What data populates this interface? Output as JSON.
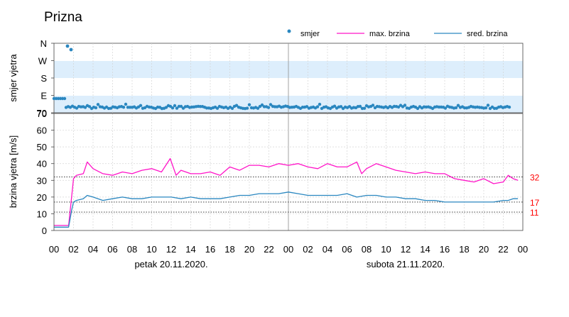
{
  "chart_data": {
    "type": "line",
    "title": "Prizna",
    "legend": {
      "placement": "top-right",
      "entries": [
        {
          "label": "smjer",
          "color": "#2a87c0",
          "marker": "dot"
        },
        {
          "label": "max. brzina",
          "color": "#ff14c8",
          "marker": "line"
        },
        {
          "label": "sred. brzina",
          "color": "#2a87c0",
          "marker": "line"
        }
      ]
    },
    "x": {
      "tick_labels": [
        "00",
        "02",
        "04",
        "06",
        "08",
        "10",
        "12",
        "14",
        "16",
        "18",
        "20",
        "22",
        "00",
        "02",
        "04",
        "06",
        "08",
        "10",
        "12",
        "14",
        "16",
        "18",
        "20",
        "22",
        "00"
      ],
      "day_labels": [
        "petak  20.11.2020.",
        "subota  21.11.2020."
      ],
      "range_hours": [
        0,
        48
      ]
    },
    "direction_panel": {
      "ylabel": "smjer vjetra",
      "tick_labels": [
        "N",
        "W",
        "S",
        "E",
        "70"
      ],
      "shaded_bands": [
        "W–S",
        "E–70"
      ],
      "series_name": "smjer",
      "color": "#2a87c0"
    },
    "speed_panel": {
      "ylabel": "brzina vjetra [m/s]",
      "ylim": [
        0,
        70
      ],
      "yticks": [
        0,
        10,
        20,
        30,
        40,
        50,
        60,
        70
      ],
      "reference_lines": [
        {
          "value": 32,
          "label": "32",
          "color": "#ff0000"
        },
        {
          "value": 17,
          "label": "17",
          "color": "#ff0000"
        },
        {
          "value": 11,
          "label": "11",
          "color": "#ff0000"
        }
      ],
      "series": [
        {
          "name": "max. brzina",
          "color": "#ff14c8",
          "hours": [
            0,
            1,
            1.5,
            1.8,
            2,
            2.3,
            3,
            3.4,
            4,
            5,
            6,
            7,
            8,
            9,
            10,
            11,
            11.9,
            12.5,
            13,
            14,
            15,
            16,
            17,
            18,
            19,
            20,
            21,
            22,
            23,
            24,
            25,
            26,
            27,
            28,
            29,
            30,
            31,
            31.5,
            32,
            33,
            34,
            35,
            36,
            37,
            38,
            39,
            40,
            41,
            42,
            43,
            44,
            45,
            46,
            46.5,
            47,
            47.5
          ],
          "values": [
            3,
            3,
            3,
            20,
            31,
            33,
            34,
            41,
            37,
            34,
            33,
            35,
            34,
            36,
            37,
            35,
            43,
            33,
            36,
            34,
            34,
            35,
            33,
            38,
            36,
            39,
            39,
            38,
            40,
            39,
            40,
            38,
            37,
            40,
            38,
            38,
            41,
            34,
            37,
            40,
            38,
            36,
            35,
            34,
            35,
            34,
            34,
            31,
            30,
            29,
            31,
            28,
            29,
            33,
            31,
            30
          ]
        },
        {
          "name": "sred. brzina",
          "color": "#2a87c0",
          "hours": [
            0,
            1,
            1.5,
            1.8,
            2,
            2.3,
            3,
            3.4,
            4,
            5,
            6,
            7,
            8,
            9,
            10,
            11,
            12,
            13,
            14,
            15,
            16,
            17,
            18,
            19,
            20,
            21,
            22,
            23,
            24,
            25,
            26,
            27,
            28,
            29,
            30,
            31,
            32,
            33,
            34,
            35,
            36,
            37,
            38,
            39,
            40,
            41,
            42,
            43,
            44,
            45,
            46,
            46.5,
            47,
            47.5
          ],
          "values": [
            2,
            2,
            2,
            12,
            17,
            18,
            19,
            21,
            20,
            18,
            19,
            20,
            19,
            19,
            20,
            20,
            20,
            19,
            20,
            19,
            19,
            19,
            20,
            21,
            21,
            22,
            22,
            22,
            23,
            22,
            21,
            21,
            21,
            21,
            22,
            20,
            21,
            21,
            20,
            20,
            19,
            19,
            18,
            18,
            17,
            17,
            17,
            17,
            17,
            17,
            18,
            18,
            19,
            19
          ]
        }
      ]
    }
  }
}
